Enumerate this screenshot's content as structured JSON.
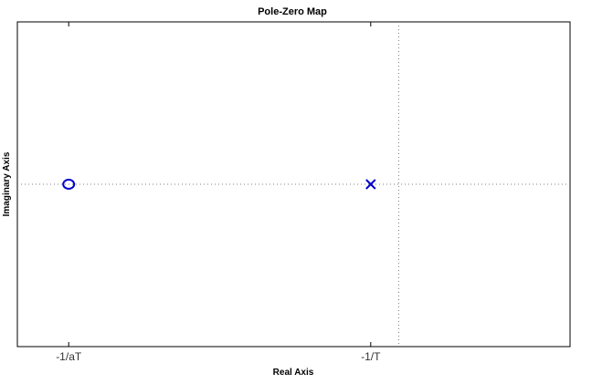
{
  "chart_data": {
    "type": "scatter",
    "title": "Pole-Zero Map",
    "xlabel": "Real Axis",
    "ylabel": "Imaginary Axis",
    "x_ticks": [
      {
        "label": "-1/aT",
        "value": 0.0
      },
      {
        "label": "-1/T",
        "value": 1.0
      }
    ],
    "xlim": [
      -0.17,
      1.66
    ],
    "ylim": [
      -1,
      1
    ],
    "grid": false,
    "zero_reference_lines": true,
    "series": [
      {
        "kind": "zero",
        "marker": "circle",
        "color": "#0000cc",
        "points": [
          {
            "x": 0.0,
            "y": 0.0
          }
        ]
      },
      {
        "kind": "pole",
        "marker": "x",
        "color": "#0000cc",
        "points": [
          {
            "x": 1.0,
            "y": 0.0
          }
        ]
      }
    ],
    "colors": {
      "axes": "#000000",
      "reference_line": "#7f7f7f",
      "markers": "#0000cc"
    }
  }
}
